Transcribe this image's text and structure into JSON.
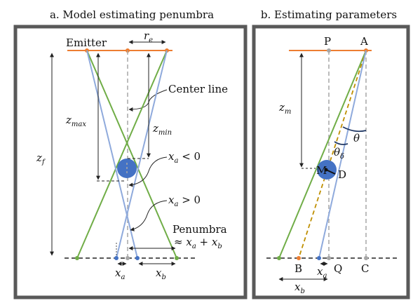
{
  "panel_a": {
    "title": "a. Model estimating penumbra",
    "emitter": "Emitter",
    "r": "r",
    "r_sub": "e",
    "center_line": "Center line",
    "z_max": "z",
    "z_max_sub": "max",
    "z_min": "z",
    "z_min_sub": "min",
    "z_f": "z",
    "z_f_sub": "f",
    "xa_neg_x": "x",
    "xa_neg_sub": "a",
    "xa_neg_rel": " < 0",
    "xa_pos_x": "x",
    "xa_pos_sub": "a",
    "xa_pos_rel": " > 0",
    "penumbra": "Penumbra",
    "approx": "≈ ",
    "pen_x1": "x",
    "pen_x1_sub": "a",
    "pen_plus": " + ",
    "pen_x2": "x",
    "pen_x2_sub": "b",
    "bottom_xa": "x",
    "bottom_xa_sub": "a",
    "bottom_xb": "x",
    "bottom_xb_sub": "b"
  },
  "panel_b": {
    "title": "b. Estimating parameters",
    "P": "P",
    "A": "A",
    "z_m": "z",
    "z_m_sub": "m",
    "theta": "θ",
    "theta_d": "θ",
    "theta_d_sub": "δ",
    "M": "M",
    "D": "D",
    "B": "B",
    "xa": "x",
    "xa_sub": "a",
    "Q": "Q",
    "C": "C",
    "xb": "x",
    "xb_sub": "b"
  },
  "colors": {
    "frame": "#595959",
    "emitter": "#ed7d31",
    "green": "#70ad47",
    "blue": "#8faadc",
    "ball": "#4472c4",
    "gray": "#a6a6a6",
    "dark": "#222222"
  }
}
